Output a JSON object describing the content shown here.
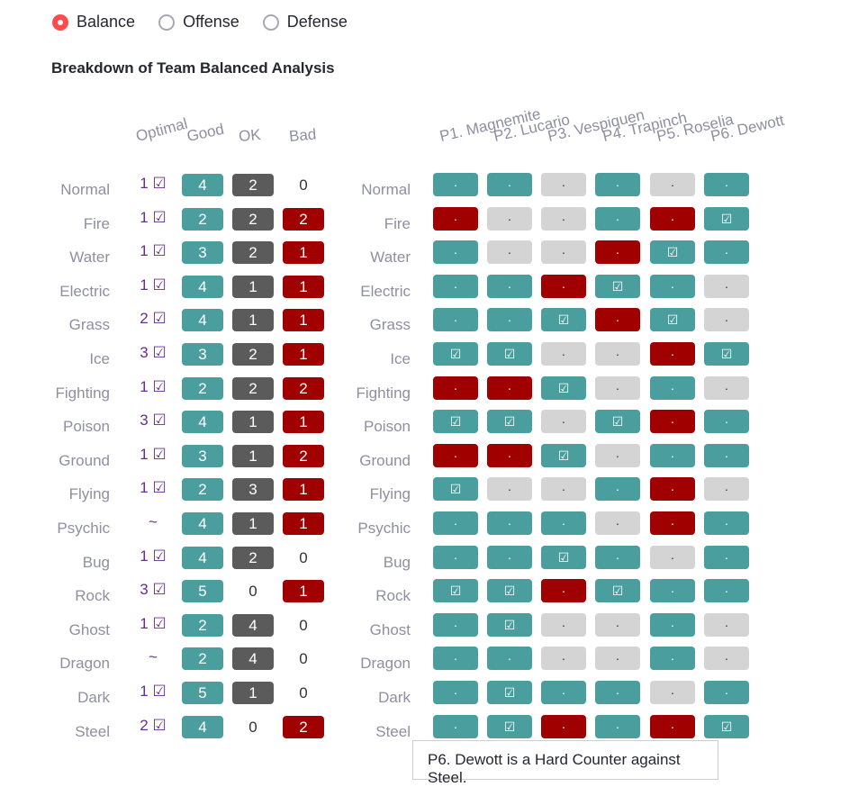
{
  "radio": [
    {
      "label": "Balance",
      "selected": true
    },
    {
      "label": "Offense",
      "selected": false
    },
    {
      "label": "Defense",
      "selected": false
    }
  ],
  "title": "Breakdown of Team Balanced Analysis",
  "summary_headers": [
    "Optimal",
    "Good",
    "OK",
    "Bad"
  ],
  "member_headers": [
    "P1. Magnemite",
    "P2. Lucario",
    "P3. Vespiquen",
    "P4. Trapinch",
    "P5. Roselia",
    "P6. Dewott"
  ],
  "symbols": {
    "check": "☑",
    "dot": "·"
  },
  "rows": [
    {
      "type": "Normal",
      "optimal": "1 ☑",
      "good": "4",
      "ok": "2",
      "bad": "0",
      "members": "gg n g n g"
    },
    {
      "type": "Fire",
      "optimal": "1 ☑",
      "good": "2",
      "ok": "2",
      "bad": "2",
      "members": "r n n g r c"
    },
    {
      "type": "Water",
      "optimal": "1 ☑",
      "good": "3",
      "ok": "2",
      "bad": "1",
      "members": "g n n r c g"
    },
    {
      "type": "Electric",
      "optimal": "1 ☑",
      "good": "4",
      "ok": "1",
      "bad": "1",
      "members": "g g r c g n"
    },
    {
      "type": "Grass",
      "optimal": "2 ☑",
      "good": "4",
      "ok": "1",
      "bad": "1",
      "members": "g g c r c n"
    },
    {
      "type": "Ice",
      "optimal": "3 ☑",
      "good": "3",
      "ok": "2",
      "bad": "1",
      "members": "c c n n r c"
    },
    {
      "type": "Fighting",
      "optimal": "1 ☑",
      "good": "2",
      "ok": "2",
      "bad": "2",
      "members": "r r c n g n"
    },
    {
      "type": "Poison",
      "optimal": "3 ☑",
      "good": "4",
      "ok": "1",
      "bad": "1",
      "members": "c c n c r g"
    },
    {
      "type": "Ground",
      "optimal": "1 ☑",
      "good": "3",
      "ok": "1",
      "bad": "2",
      "members": "r r c n g g"
    },
    {
      "type": "Flying",
      "optimal": "1 ☑",
      "good": "2",
      "ok": "3",
      "bad": "1",
      "members": "c n n g r n"
    },
    {
      "type": "Psychic",
      "optimal": "~",
      "good": "4",
      "ok": "1",
      "bad": "1",
      "members": "g g g n r g"
    },
    {
      "type": "Bug",
      "optimal": "1 ☑",
      "good": "4",
      "ok": "2",
      "bad": "0",
      "members": "g g c g n g"
    },
    {
      "type": "Rock",
      "optimal": "3 ☑",
      "good": "5",
      "ok": "0",
      "bad": "1",
      "members": "c c r c g g"
    },
    {
      "type": "Ghost",
      "optimal": "1 ☑",
      "good": "2",
      "ok": "4",
      "bad": "0",
      "members": "g c n n g n"
    },
    {
      "type": "Dragon",
      "optimal": "~",
      "good": "2",
      "ok": "4",
      "bad": "0",
      "members": "g g n n g n"
    },
    {
      "type": "Dark",
      "optimal": "1 ☑",
      "good": "5",
      "ok": "1",
      "bad": "0",
      "members": "g c g g n g"
    },
    {
      "type": "Steel",
      "optimal": "2 ☑",
      "good": "4",
      "ok": "0",
      "bad": "2",
      "members": "g c r g r c"
    }
  ],
  "tooltip": "P6. Dewott is a Hard Counter against Steel.",
  "colors": {
    "good": "#4b9e9e",
    "ok": "#5b5b5b",
    "bad": "#a00000",
    "neutral": "#d4d4d4",
    "optimal": "#6a2c91",
    "radio": "#ff4b4b"
  }
}
